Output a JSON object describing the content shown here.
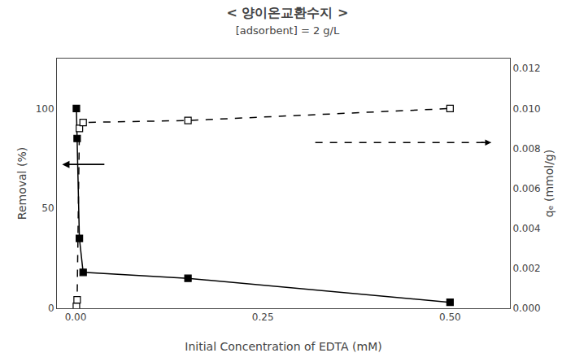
{
  "chart_data": {
    "type": "line",
    "title": "< 양이온교환수지 >",
    "subtitle": "[adsorbent] = 2 g/L",
    "xlabel": "Initial Concentration of EDTA (mM)",
    "ylabel": "Removal (%)",
    "y2label": "qₑ (mmol/g)",
    "x": [
      0.001,
      0.002,
      0.005,
      0.01,
      0.15,
      0.5
    ],
    "series": [
      {
        "values": [
          100,
          85,
          35,
          18,
          15,
          3
        ],
        "color": "black",
        "marker": "square",
        "line_style": "solid"
      },
      {
        "values": [
          0.0001,
          0.00042,
          0.009,
          0.0093,
          0.0094,
          0.01
        ],
        "axis": "y2",
        "color": "black",
        "marker": "square-open",
        "line_style": "dashed"
      }
    ],
    "xlim": [
      -0.025,
      0.58
    ],
    "xticks": [
      {
        "value": 0,
        "label": "0.00"
      },
      0.25,
      {
        "value": 0.5,
        "label": "0.50"
      }
    ],
    "ylim": [
      0,
      125
    ],
    "yticks": [
      0,
      50,
      100
    ],
    "y2lim": [
      0,
      0.0125
    ],
    "y2ticks": [
      {
        "value": 0,
        "label": "0.000"
      },
      0.002,
      0.004,
      0.006,
      0.008,
      {
        "value": 0.01,
        "label": "0.010"
      },
      0.012
    ],
    "arrows": [
      {
        "from": [
          0.04,
          72
        ],
        "to": [
          -0.018,
          72
        ],
        "axis": "y",
        "line_style": "solid"
      },
      {
        "from": [
          0.32,
          0.0083
        ],
        "to": [
          0.555,
          0.0083
        ],
        "axis": "y2",
        "line_style": "dashed"
      }
    ],
    "grid": false
  }
}
